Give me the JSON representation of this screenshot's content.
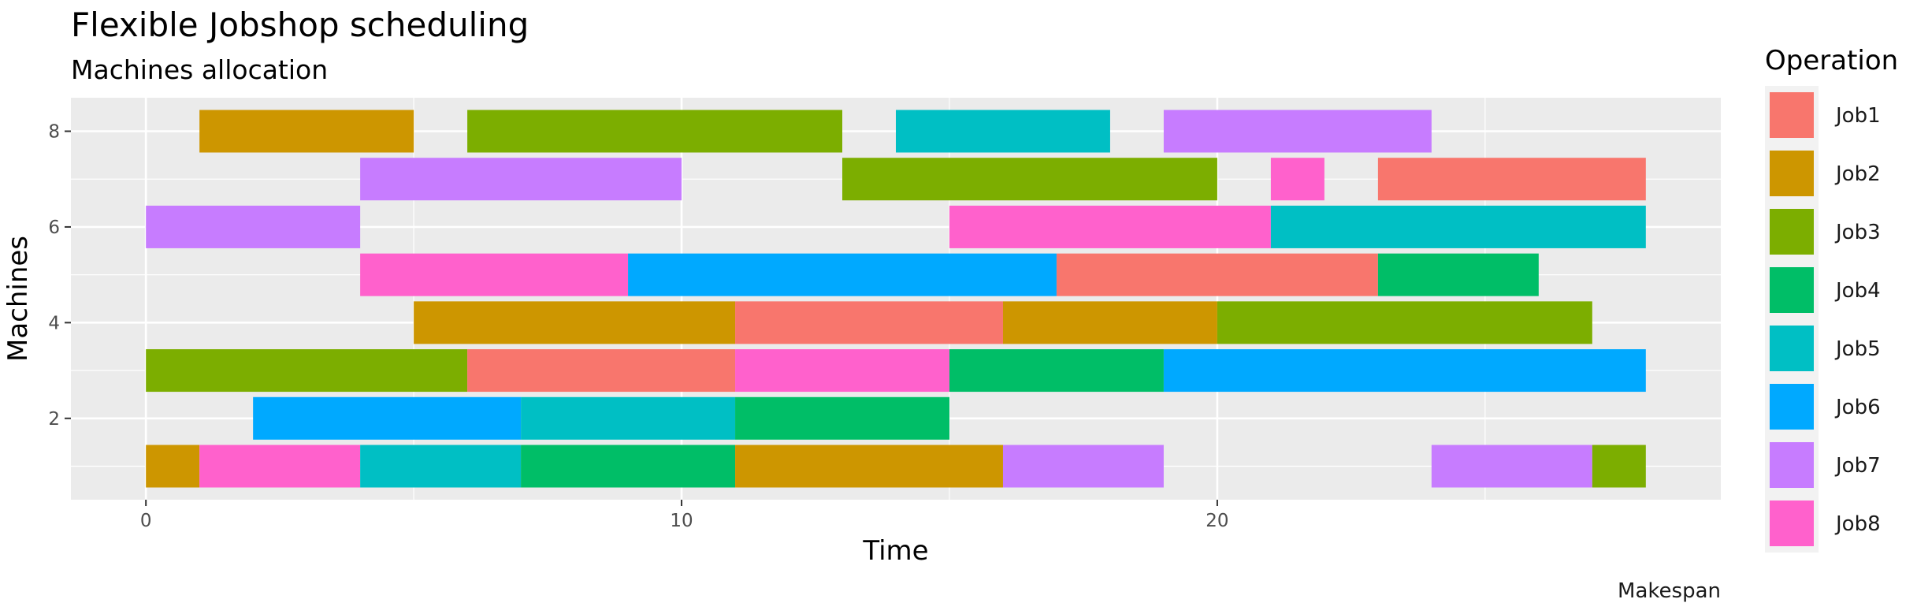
{
  "chart_data": {
    "type": "gantt",
    "title": "Flexible Jobshop scheduling",
    "subtitle": "Machines allocation",
    "xlabel": "Time",
    "ylabel": "Machines",
    "caption": "Makespan",
    "xlim": [
      -1.4,
      29.4
    ],
    "ylim": [
      0.3,
      8.7
    ],
    "x_ticks": [
      0,
      10,
      20
    ],
    "y_ticks": [
      2,
      4,
      6,
      8
    ],
    "grid": true,
    "legend": {
      "title": "Operation",
      "position": "right"
    },
    "jobs": [
      {
        "name": "Job1",
        "color": "#F8766D"
      },
      {
        "name": "Job2",
        "color": "#CD9600"
      },
      {
        "name": "Job3",
        "color": "#7CAE00"
      },
      {
        "name": "Job4",
        "color": "#00BE67"
      },
      {
        "name": "Job5",
        "color": "#00BFC4"
      },
      {
        "name": "Job6",
        "color": "#00A9FF"
      },
      {
        "name": "Job7",
        "color": "#C77CFF"
      },
      {
        "name": "Job8",
        "color": "#FF61CC"
      }
    ],
    "operations": [
      {
        "machine": 8,
        "job": "Job2",
        "start": 1,
        "end": 5
      },
      {
        "machine": 8,
        "job": "Job3",
        "start": 6,
        "end": 13
      },
      {
        "machine": 8,
        "job": "Job5",
        "start": 14,
        "end": 18
      },
      {
        "machine": 8,
        "job": "Job7",
        "start": 19,
        "end": 24
      },
      {
        "machine": 7,
        "job": "Job7",
        "start": 4,
        "end": 10
      },
      {
        "machine": 7,
        "job": "Job3",
        "start": 13,
        "end": 20
      },
      {
        "machine": 7,
        "job": "Job8",
        "start": 21,
        "end": 22
      },
      {
        "machine": 7,
        "job": "Job1",
        "start": 23,
        "end": 28
      },
      {
        "machine": 6,
        "job": "Job7",
        "start": 0,
        "end": 4
      },
      {
        "machine": 6,
        "job": "Job8",
        "start": 15,
        "end": 21
      },
      {
        "machine": 6,
        "job": "Job5",
        "start": 21,
        "end": 28
      },
      {
        "machine": 5,
        "job": "Job8",
        "start": 4,
        "end": 9
      },
      {
        "machine": 5,
        "job": "Job6",
        "start": 9,
        "end": 17
      },
      {
        "machine": 5,
        "job": "Job1",
        "start": 17,
        "end": 23
      },
      {
        "machine": 5,
        "job": "Job4",
        "start": 23,
        "end": 26
      },
      {
        "machine": 4,
        "job": "Job2",
        "start": 5,
        "end": 11
      },
      {
        "machine": 4,
        "job": "Job1",
        "start": 11,
        "end": 16
      },
      {
        "machine": 4,
        "job": "Job2",
        "start": 16,
        "end": 20
      },
      {
        "machine": 4,
        "job": "Job3",
        "start": 20,
        "end": 27
      },
      {
        "machine": 3,
        "job": "Job3",
        "start": 0,
        "end": 6
      },
      {
        "machine": 3,
        "job": "Job1",
        "start": 6,
        "end": 11
      },
      {
        "machine": 3,
        "job": "Job8",
        "start": 11,
        "end": 15
      },
      {
        "machine": 3,
        "job": "Job4",
        "start": 15,
        "end": 19
      },
      {
        "machine": 3,
        "job": "Job6",
        "start": 19,
        "end": 28
      },
      {
        "machine": 2,
        "job": "Job6",
        "start": 2,
        "end": 7
      },
      {
        "machine": 2,
        "job": "Job5",
        "start": 7,
        "end": 11
      },
      {
        "machine": 2,
        "job": "Job4",
        "start": 11,
        "end": 15
      },
      {
        "machine": 1,
        "job": "Job2",
        "start": 0,
        "end": 1
      },
      {
        "machine": 1,
        "job": "Job8",
        "start": 1,
        "end": 4
      },
      {
        "machine": 1,
        "job": "Job5",
        "start": 4,
        "end": 7
      },
      {
        "machine": 1,
        "job": "Job4",
        "start": 7,
        "end": 11
      },
      {
        "machine": 1,
        "job": "Job2",
        "start": 11,
        "end": 16
      },
      {
        "machine": 1,
        "job": "Job7",
        "start": 16,
        "end": 19
      },
      {
        "machine": 1,
        "job": "Job7",
        "start": 24,
        "end": 27
      },
      {
        "machine": 1,
        "job": "Job3",
        "start": 27,
        "end": 28
      }
    ]
  }
}
